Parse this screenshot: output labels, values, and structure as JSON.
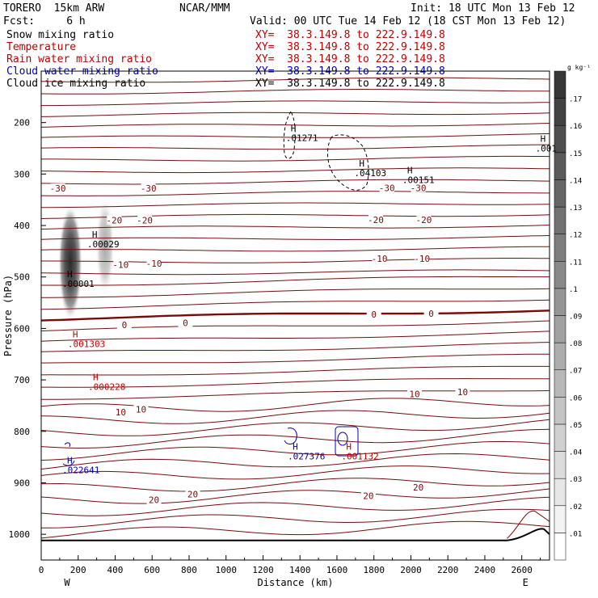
{
  "header": {
    "model": "TORERO  15km ARW",
    "forecast": "Fcst:     6 h",
    "org": "NCAR/MMM",
    "init": "Init: 18 UTC Mon 13 Feb 12",
    "valid": "Valid: 00 UTC Tue 14 Feb 12 (18 CST Mon 13 Feb 12)"
  },
  "legend": [
    {
      "label": "Snow mixing ratio",
      "xy": "XY=  38.3.149.8 to 222.9.149.8",
      "color": "#000000"
    },
    {
      "label": "Temperature",
      "xy": "XY=  38.3.149.8 to 222.9.149.8",
      "color": "#c00000"
    },
    {
      "label": "Rain water mixing ratio",
      "xy": "XY=  38.3.149.8 to 222.9.149.8",
      "color": "#c00000"
    },
    {
      "label": "Cloud water mixing ratio",
      "xy": "XY=  38.3.149.8 to 222.9.149.8",
      "color": "#0000b0"
    },
    {
      "label": "Cloud ice mixing ratio",
      "xy": "XY=  38.3.149.8 to 222.9.149.8",
      "color": "#000000"
    }
  ],
  "chart_data": {
    "type": "cross-section",
    "xlabel": "Distance (km)",
    "ylabel": "Pressure (hPa)",
    "xlim": [
      0,
      2750
    ],
    "ylim": [
      1050,
      100
    ],
    "x_ticks": [
      0,
      200,
      400,
      600,
      800,
      1000,
      1200,
      1400,
      1600,
      1800,
      2000,
      2200,
      2400,
      2600
    ],
    "y_ticks": [
      200,
      300,
      400,
      500,
      600,
      700,
      800,
      900,
      1000
    ],
    "x_end_labels": {
      "left": "W",
      "right": "E"
    },
    "colorbar": {
      "unit": "g kg⁻¹",
      "levels": [
        ".01",
        ".02",
        ".03",
        ".04",
        ".05",
        ".06",
        ".07",
        ".08",
        ".09",
        ".1",
        ".11",
        ".12",
        ".13",
        ".14",
        ".15",
        ".16",
        ".17"
      ]
    },
    "temperature_labels": [
      {
        "text": "-30",
        "x": 90,
        "p": 328
      },
      {
        "text": "-30",
        "x": 580,
        "p": 328
      },
      {
        "text": "-30",
        "x": 1870,
        "p": 327
      },
      {
        "text": "-30",
        "x": 2040,
        "p": 327
      },
      {
        "text": "-20",
        "x": 395,
        "p": 390
      },
      {
        "text": "-20",
        "x": 560,
        "p": 390
      },
      {
        "text": "-20",
        "x": 1810,
        "p": 389
      },
      {
        "text": "-20",
        "x": 2070,
        "p": 389
      },
      {
        "text": "-10",
        "x": 430,
        "p": 476
      },
      {
        "text": "-10",
        "x": 610,
        "p": 474
      },
      {
        "text": "-10",
        "x": 1830,
        "p": 464
      },
      {
        "text": "-10",
        "x": 2060,
        "p": 464
      },
      {
        "text": "0",
        "x": 450,
        "p": 593
      },
      {
        "text": "0",
        "x": 780,
        "p": 589
      },
      {
        "text": "0",
        "x": 1800,
        "p": 573
      },
      {
        "text": "0",
        "x": 2110,
        "p": 571
      },
      {
        "text": "10",
        "x": 430,
        "p": 763
      },
      {
        "text": "10",
        "x": 540,
        "p": 757
      },
      {
        "text": "10",
        "x": 2020,
        "p": 727
      },
      {
        "text": "10",
        "x": 2280,
        "p": 723
      },
      {
        "text": "20",
        "x": 610,
        "p": 933
      },
      {
        "text": "20",
        "x": 820,
        "p": 922
      },
      {
        "text": "20",
        "x": 1770,
        "p": 925
      },
      {
        "text": "20",
        "x": 2040,
        "p": 909
      }
    ],
    "maxima": [
      {
        "mark": "H",
        "value": ".01271",
        "x": 1350,
        "p": 222,
        "color": "#000000"
      },
      {
        "mark": "H",
        "value": ".04103",
        "x": 1720,
        "p": 290,
        "color": "#000000"
      },
      {
        "mark": "H",
        "value": ".00151",
        "x": 1980,
        "p": 303,
        "color": "#000000"
      },
      {
        "mark": "H",
        "value": ".001",
        "x": 2700,
        "p": 242,
        "color": "#000000"
      },
      {
        "mark": "H",
        "value": ".00029",
        "x": 275,
        "p": 428,
        "color": "#000000"
      },
      {
        "mark": "H",
        "value": ".00001",
        "x": 140,
        "p": 505,
        "color": "#000000"
      },
      {
        "mark": "H",
        "value": ".001303",
        "x": 170,
        "p": 622,
        "color": "#c00000"
      },
      {
        "mark": "H",
        "value": ".000228",
        "x": 280,
        "p": 705,
        "color": "#c00000"
      },
      {
        "mark": "H",
        "value": ".022641",
        "x": 140,
        "p": 867,
        "color": "#0000b0"
      },
      {
        "mark": "H",
        "value": ".027376",
        "x": 1360,
        "p": 840,
        "color": "#0000b0"
      },
      {
        "mark": "H",
        "value": ".001132",
        "x": 1650,
        "p": 840,
        "color": "#c00000"
      }
    ]
  }
}
